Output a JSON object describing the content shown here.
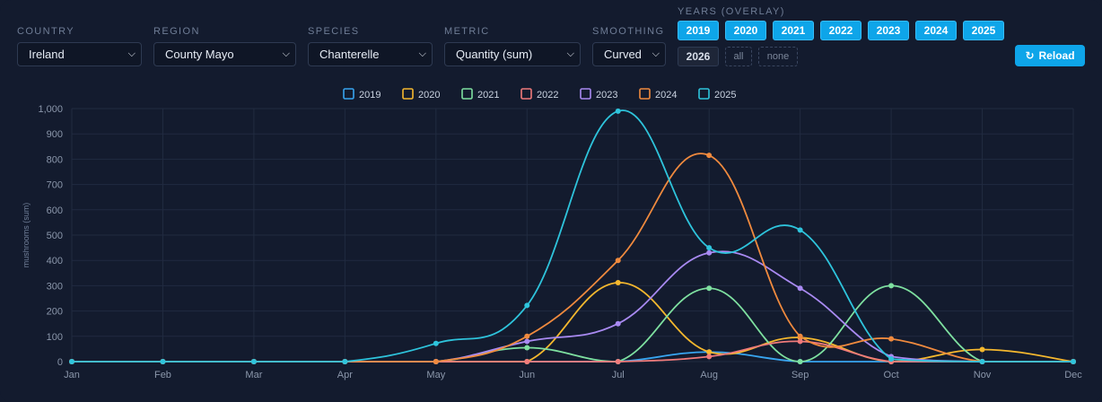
{
  "filters": {
    "country": {
      "label": "COUNTRY",
      "value": "Ireland"
    },
    "region": {
      "label": "REGION",
      "value": "County Mayo"
    },
    "species": {
      "label": "SPECIES",
      "value": "Chanterelle"
    },
    "metric": {
      "label": "METRIC",
      "value": "Quantity (sum)"
    },
    "smoothing": {
      "label": "SMOOTHING",
      "value": "Curved"
    }
  },
  "years": {
    "label": "YEARS (OVERLAY)",
    "buttons": [
      {
        "label": "2019",
        "active": true
      },
      {
        "label": "2020",
        "active": true
      },
      {
        "label": "2021",
        "active": true
      },
      {
        "label": "2022",
        "active": true
      },
      {
        "label": "2023",
        "active": true
      },
      {
        "label": "2024",
        "active": true
      },
      {
        "label": "2025",
        "active": true
      },
      {
        "label": "2026",
        "active": false
      }
    ],
    "all_label": "all",
    "none_label": "none"
  },
  "reload_label": "Reload",
  "colors": {
    "accent": "#0ea5e9",
    "background": "#131b2e"
  },
  "chart_data": {
    "type": "line",
    "xlabel": "",
    "ylabel": "mushrooms (sum)",
    "ylim": [
      0,
      1000
    ],
    "yticks": [
      0,
      100,
      200,
      300,
      400,
      500,
      600,
      700,
      800,
      900,
      1000
    ],
    "ytick_labels": [
      "0",
      "100",
      "200",
      "300",
      "400",
      "500",
      "600",
      "700",
      "800",
      "900",
      "1,000"
    ],
    "categories": [
      "Jan",
      "Feb",
      "Mar",
      "Apr",
      "May",
      "Jun",
      "Jul",
      "Aug",
      "Sep",
      "Oct",
      "Nov",
      "Dec"
    ],
    "legend_position": "top",
    "grid": true,
    "series": [
      {
        "name": "2019",
        "color": "#38a5f0",
        "values": [
          0,
          0,
          0,
          0,
          0,
          0,
          0,
          38,
          0,
          0,
          0,
          0
        ]
      },
      {
        "name": "2020",
        "color": "#f5b82e",
        "values": [
          0,
          0,
          0,
          0,
          0,
          0,
          312,
          38,
          95,
          0,
          48,
          0
        ]
      },
      {
        "name": "2021",
        "color": "#7ee0a0",
        "values": [
          0,
          0,
          0,
          0,
          0,
          55,
          0,
          290,
          0,
          300,
          0,
          0
        ]
      },
      {
        "name": "2022",
        "color": "#f07b7b",
        "values": [
          0,
          0,
          0,
          0,
          0,
          0,
          0,
          20,
          80,
          0,
          0,
          0
        ]
      },
      {
        "name": "2023",
        "color": "#a98af2",
        "values": [
          0,
          0,
          0,
          0,
          0,
          80,
          150,
          430,
          290,
          20,
          0,
          0
        ]
      },
      {
        "name": "2024",
        "color": "#f08a3e",
        "values": [
          0,
          0,
          0,
          0,
          0,
          100,
          400,
          815,
          100,
          90,
          0,
          0
        ]
      },
      {
        "name": "2025",
        "color": "#2ec4dc",
        "values": [
          0,
          0,
          0,
          0,
          72,
          222,
          990,
          450,
          520,
          10,
          0,
          0
        ]
      }
    ]
  }
}
